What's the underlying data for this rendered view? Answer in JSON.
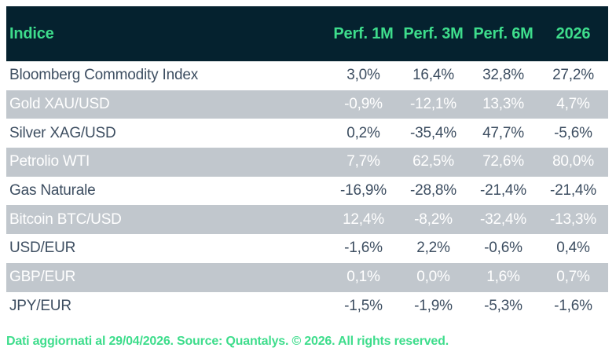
{
  "table": {
    "columns": [
      "Indice",
      "Perf. 1M",
      "Perf. 3M",
      "Perf. 6M",
      "2026"
    ],
    "rows": [
      {
        "label": "Bloomberg Commodity Index",
        "values": [
          "3,0%",
          "16,4%",
          "32,8%",
          "27,2%"
        ]
      },
      {
        "label": "Gold XAU/USD",
        "values": [
          "-0,9%",
          "-12,1%",
          "13,3%",
          "4,7%"
        ]
      },
      {
        "label": "Silver XAG/USD",
        "values": [
          "0,2%",
          "-35,4%",
          "47,7%",
          "-5,6%"
        ]
      },
      {
        "label": "Petrolio WTI",
        "values": [
          "7,7%",
          "62,5%",
          "72,6%",
          "80,0%"
        ]
      },
      {
        "label": "Gas Naturale",
        "values": [
          "-16,9%",
          "-28,8%",
          "-21,4%",
          "-21,4%"
        ]
      },
      {
        "label": "Bitcoin BTC/USD",
        "values": [
          "12,4%",
          "-8,2%",
          "-32,4%",
          "-13,3%"
        ]
      },
      {
        "label": "USD/EUR",
        "values": [
          "-1,6%",
          "2,2%",
          "-0,6%",
          "0,4%"
        ]
      },
      {
        "label": "GBP/EUR",
        "values": [
          "0,1%",
          "0,0%",
          "1,6%",
          "0,7%"
        ]
      },
      {
        "label": "JPY/EUR",
        "values": [
          "-1,5%",
          "-1,9%",
          "-5,3%",
          "-1,6%"
        ]
      }
    ]
  },
  "footer": {
    "text": "Dati aggiornati al 29/04/2026. Source: Quantalys. © 2026. All rights reserved."
  },
  "colors": {
    "header_background": "#05222f",
    "accent_green": "#3edd8c",
    "alt_row_gray": "#c1c7cd",
    "row_text": "#3d4e61",
    "alt_row_text": "#ffffff"
  },
  "chart_data": {
    "type": "table",
    "title": "Indice performance table",
    "unit": "%",
    "columns": [
      "Indice",
      "Perf. 1M",
      "Perf. 3M",
      "Perf. 6M",
      "2026"
    ],
    "rows": [
      {
        "indice": "Bloomberg Commodity Index",
        "perf_1m": 3.0,
        "perf_3m": 16.4,
        "perf_6m": 32.8,
        "y2026": 27.2
      },
      {
        "indice": "Gold XAU/USD",
        "perf_1m": -0.9,
        "perf_3m": -12.1,
        "perf_6m": 13.3,
        "y2026": 4.7
      },
      {
        "indice": "Silver XAG/USD",
        "perf_1m": 0.2,
        "perf_3m": -35.4,
        "perf_6m": 47.7,
        "y2026": -5.6
      },
      {
        "indice": "Petrolio WTI",
        "perf_1m": 7.7,
        "perf_3m": 62.5,
        "perf_6m": 72.6,
        "y2026": 80.0
      },
      {
        "indice": "Gas Naturale",
        "perf_1m": -16.9,
        "perf_3m": -28.8,
        "perf_6m": -21.4,
        "y2026": -21.4
      },
      {
        "indice": "Bitcoin BTC/USD",
        "perf_1m": 12.4,
        "perf_3m": -8.2,
        "perf_6m": -32.4,
        "y2026": -13.3
      },
      {
        "indice": "USD/EUR",
        "perf_1m": -1.6,
        "perf_3m": 2.2,
        "perf_6m": -0.6,
        "y2026": 0.4
      },
      {
        "indice": "GBP/EUR",
        "perf_1m": 0.1,
        "perf_3m": 0.0,
        "perf_6m": 1.6,
        "y2026": 0.7
      },
      {
        "indice": "JPY/EUR",
        "perf_1m": -1.5,
        "perf_3m": -1.9,
        "perf_6m": -5.3,
        "y2026": -1.6
      }
    ]
  }
}
